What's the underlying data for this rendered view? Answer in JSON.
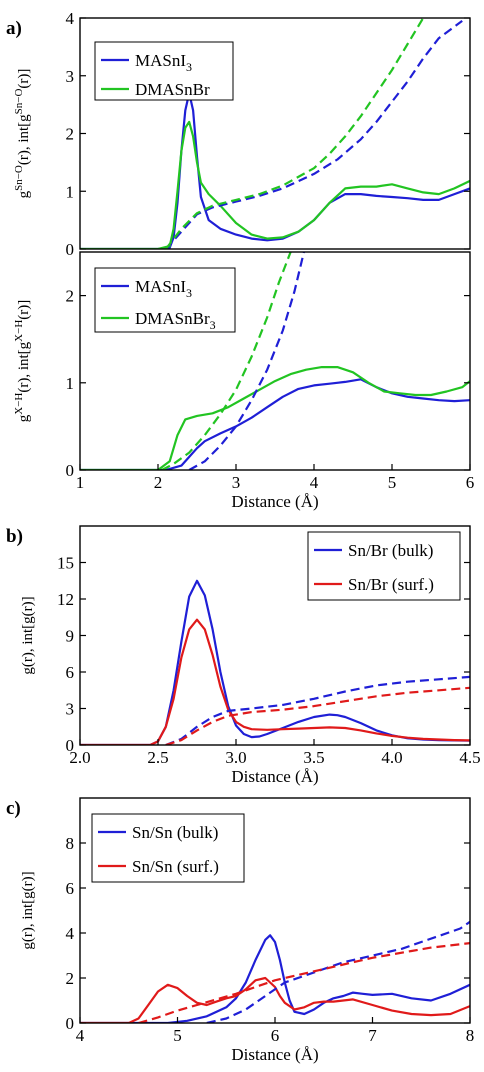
{
  "chart_data": [
    {
      "panel_label": "a)",
      "type": "line",
      "ylabel_main": "g",
      "ylabel_sup": "Sn−O",
      "ylabel_mid": "(r), int[g",
      "ylabel_sup2": "Sn−O",
      "ylabel_end": "(r)]",
      "xlim": [
        1,
        6
      ],
      "ylim": [
        0,
        4
      ],
      "yticks": [
        "0",
        "1",
        "2",
        "3",
        "4"
      ],
      "legend": [
        {
          "label": "MASnI",
          "sub": "3",
          "color": "#1f1fd6"
        },
        {
          "label": "DMASnBr",
          "sub": "",
          "color": "#22c422"
        }
      ],
      "series": [
        {
          "color": "#1f1fd6",
          "dash": false,
          "x": [
            1,
            2,
            2.15,
            2.2,
            2.25,
            2.3,
            2.35,
            2.4,
            2.45,
            2.5,
            2.55,
            2.65,
            2.8,
            3,
            3.2,
            3.4,
            3.6,
            3.8,
            4,
            4.2,
            4.4,
            4.6,
            4.8,
            5,
            5.2,
            5.4,
            5.6,
            5.8,
            6
          ],
          "y": [
            0,
            0,
            0.02,
            0.2,
            0.8,
            1.7,
            2.4,
            2.7,
            2.4,
            1.6,
            0.9,
            0.5,
            0.35,
            0.25,
            0.18,
            0.15,
            0.18,
            0.3,
            0.5,
            0.8,
            0.95,
            0.95,
            0.92,
            0.9,
            0.88,
            0.85,
            0.85,
            0.95,
            1.05
          ]
        },
        {
          "color": "#22c422",
          "dash": false,
          "x": [
            1,
            2,
            2.15,
            2.2,
            2.25,
            2.3,
            2.35,
            2.4,
            2.45,
            2.5,
            2.55,
            2.65,
            2.8,
            3,
            3.2,
            3.4,
            3.6,
            3.8,
            4,
            4.2,
            4.4,
            4.6,
            4.8,
            5,
            5.2,
            5.4,
            5.6,
            5.8,
            6
          ],
          "y": [
            0,
            0,
            0.05,
            0.35,
            1.0,
            1.7,
            2.1,
            2.2,
            1.95,
            1.5,
            1.15,
            0.95,
            0.75,
            0.45,
            0.25,
            0.18,
            0.2,
            0.3,
            0.5,
            0.8,
            1.05,
            1.08,
            1.08,
            1.12,
            1.05,
            0.98,
            0.95,
            1.05,
            1.18
          ]
        },
        {
          "color": "#1f1fd6",
          "dash": true,
          "x": [
            2.1,
            2.3,
            2.5,
            2.7,
            3,
            3.3,
            3.6,
            4,
            4.3,
            4.6,
            4.8,
            5,
            5.2,
            5.4,
            5.6,
            5.9
          ],
          "y": [
            0,
            0.3,
            0.6,
            0.72,
            0.82,
            0.92,
            1.05,
            1.3,
            1.55,
            1.9,
            2.2,
            2.55,
            2.9,
            3.3,
            3.65,
            3.95
          ]
        },
        {
          "color": "#22c422",
          "dash": true,
          "x": [
            2.1,
            2.3,
            2.5,
            2.7,
            3,
            3.3,
            3.6,
            4,
            4.2,
            4.4,
            4.6,
            4.8,
            5,
            5.2,
            5.4,
            5.6,
            5.8
          ],
          "y": [
            0,
            0.35,
            0.62,
            0.75,
            0.85,
            0.95,
            1.1,
            1.4,
            1.65,
            1.95,
            2.3,
            2.7,
            3.1,
            3.55,
            4.0,
            4.4,
            4.8
          ]
        }
      ]
    },
    {
      "panel_label": "",
      "type": "line",
      "ylabel_main": "g",
      "ylabel_sup": "X−H",
      "ylabel_mid": "(r), int[g",
      "ylabel_sup2": "X−H",
      "ylabel_end": "(r)]",
      "xlabel": "Distance (Å)",
      "xlim": [
        1,
        6
      ],
      "ylim": [
        0,
        2.5
      ],
      "xticks": [
        "1",
        "2",
        "3",
        "4",
        "5",
        "6"
      ],
      "yticks": [
        "0",
        "1",
        "2"
      ],
      "legend": [
        {
          "label": "MASnI",
          "sub": "3",
          "color": "#1f1fd6"
        },
        {
          "label": "DMASnBr",
          "sub": "3",
          "color": "#22c422"
        }
      ],
      "series": [
        {
          "color": "#1f1fd6",
          "dash": false,
          "x": [
            1,
            2.1,
            2.3,
            2.4,
            2.5,
            2.6,
            2.8,
            3,
            3.2,
            3.4,
            3.6,
            3.8,
            4,
            4.2,
            4.4,
            4.6,
            4.8,
            5,
            5.2,
            5.4,
            5.6,
            5.8,
            6
          ],
          "y": [
            0,
            0,
            0.05,
            0.15,
            0.25,
            0.33,
            0.42,
            0.5,
            0.6,
            0.72,
            0.84,
            0.93,
            0.97,
            0.99,
            1.01,
            1.04,
            0.95,
            0.88,
            0.84,
            0.82,
            0.8,
            0.79,
            0.8
          ]
        },
        {
          "color": "#22c422",
          "dash": false,
          "x": [
            1,
            2.0,
            2.15,
            2.25,
            2.35,
            2.5,
            2.7,
            2.9,
            3.1,
            3.3,
            3.5,
            3.7,
            3.9,
            4.1,
            4.3,
            4.5,
            4.7,
            4.9,
            5.1,
            5.3,
            5.5,
            5.7,
            5.9,
            6
          ],
          "y": [
            0,
            0,
            0.1,
            0.4,
            0.58,
            0.62,
            0.65,
            0.72,
            0.82,
            0.92,
            1.02,
            1.1,
            1.15,
            1.18,
            1.18,
            1.12,
            1.0,
            0.9,
            0.88,
            0.86,
            0.86,
            0.9,
            0.95,
            1.02
          ]
        },
        {
          "color": "#1f1fd6",
          "dash": true,
          "x": [
            2.4,
            2.6,
            2.8,
            3.0,
            3.2,
            3.4,
            3.6,
            3.75,
            3.87
          ],
          "y": [
            0,
            0.1,
            0.28,
            0.5,
            0.8,
            1.15,
            1.6,
            2.05,
            2.5
          ]
        },
        {
          "color": "#22c422",
          "dash": true,
          "x": [
            2.05,
            2.2,
            2.4,
            2.6,
            2.8,
            3.0,
            3.2,
            3.4,
            3.55,
            3.7
          ],
          "y": [
            0,
            0.07,
            0.2,
            0.4,
            0.64,
            0.92,
            1.3,
            1.75,
            2.15,
            2.5
          ]
        }
      ]
    },
    {
      "panel_label": "b)",
      "type": "line",
      "ylabel_main": "g(r), int[g(r)]",
      "xlabel": "Distance (Å)",
      "xlim": [
        2.0,
        4.5
      ],
      "ylim": [
        0,
        18
      ],
      "xticks": [
        "2.0",
        "2.5",
        "3.0",
        "3.5",
        "4.0",
        "4.5"
      ],
      "yticks": [
        "0",
        "3",
        "6",
        "9",
        "12",
        "15"
      ],
      "legend": [
        {
          "label": "Sn/Br (bulk)",
          "sub": "",
          "color": "#1f1fd6"
        },
        {
          "label": "Sn/Br (surf.)",
          "sub": "",
          "color": "#e01a1a"
        }
      ],
      "series": [
        {
          "color": "#1f1fd6",
          "dash": false,
          "x": [
            2.0,
            2.45,
            2.5,
            2.55,
            2.6,
            2.65,
            2.7,
            2.75,
            2.8,
            2.85,
            2.9,
            2.95,
            3.0,
            3.05,
            3.1,
            3.15,
            3.2,
            3.3,
            3.4,
            3.5,
            3.6,
            3.65,
            3.7,
            3.8,
            3.9,
            4.0,
            4.1,
            4.2,
            4.3,
            4.4,
            4.5
          ],
          "y": [
            0,
            0,
            0.3,
            1.5,
            4.5,
            8.5,
            12.2,
            13.5,
            12.3,
            9.5,
            6.0,
            3.2,
            1.6,
            0.9,
            0.65,
            0.7,
            0.9,
            1.4,
            1.9,
            2.3,
            2.5,
            2.45,
            2.3,
            1.8,
            1.2,
            0.8,
            0.55,
            0.45,
            0.4,
            0.38,
            0.35
          ]
        },
        {
          "color": "#e01a1a",
          "dash": false,
          "x": [
            2.0,
            2.45,
            2.5,
            2.55,
            2.6,
            2.65,
            2.7,
            2.75,
            2.8,
            2.85,
            2.9,
            2.95,
            3.0,
            3.05,
            3.1,
            3.2,
            3.3,
            3.4,
            3.5,
            3.6,
            3.7,
            3.8,
            3.9,
            4.0,
            4.1,
            4.2,
            4.3,
            4.4,
            4.5
          ],
          "y": [
            0,
            0,
            0.3,
            1.5,
            3.8,
            7.2,
            9.5,
            10.3,
            9.5,
            7.4,
            4.8,
            2.9,
            1.9,
            1.5,
            1.3,
            1.25,
            1.3,
            1.35,
            1.4,
            1.45,
            1.4,
            1.2,
            0.95,
            0.75,
            0.6,
            0.5,
            0.45,
            0.4,
            0.38
          ]
        },
        {
          "color": "#1f1fd6",
          "dash": true,
          "x": [
            2.55,
            2.65,
            2.75,
            2.85,
            2.95,
            3.1,
            3.3,
            3.5,
            3.7,
            3.9,
            4.1,
            4.3,
            4.5
          ],
          "y": [
            0,
            0.5,
            1.5,
            2.3,
            2.8,
            3.0,
            3.3,
            3.8,
            4.4,
            4.9,
            5.2,
            5.4,
            5.6
          ]
        },
        {
          "color": "#e01a1a",
          "dash": true,
          "x": [
            2.55,
            2.65,
            2.75,
            2.85,
            2.95,
            3.1,
            3.3,
            3.5,
            3.7,
            3.9,
            4.1,
            4.3,
            4.5
          ],
          "y": [
            0,
            0.4,
            1.2,
            1.9,
            2.4,
            2.7,
            2.9,
            3.2,
            3.6,
            4.0,
            4.3,
            4.5,
            4.7
          ]
        }
      ]
    },
    {
      "panel_label": "c)",
      "type": "line",
      "ylabel_main": "g(r), int[g(r)]",
      "xlabel": "Distance (Å)",
      "xlim": [
        4,
        8
      ],
      "ylim": [
        0,
        10
      ],
      "xticks": [
        "4",
        "5",
        "6",
        "7",
        "8"
      ],
      "yticks": [
        "0",
        "2",
        "4",
        "6",
        "8"
      ],
      "legend": [
        {
          "label": "Sn/Sn (bulk)",
          "sub": "",
          "color": "#1f1fd6"
        },
        {
          "label": "Sn/Sn (surf.)",
          "sub": "",
          "color": "#e01a1a"
        }
      ],
      "series": [
        {
          "color": "#1f1fd6",
          "dash": false,
          "x": [
            4,
            4.9,
            5.1,
            5.3,
            5.5,
            5.6,
            5.7,
            5.8,
            5.9,
            5.95,
            6.0,
            6.05,
            6.1,
            6.15,
            6.2,
            6.3,
            6.4,
            6.5,
            6.6,
            6.7,
            6.8,
            6.9,
            7.0,
            7.2,
            7.4,
            7.6,
            7.8,
            8
          ],
          "y": [
            0,
            0,
            0.1,
            0.3,
            0.7,
            1.1,
            1.8,
            2.8,
            3.7,
            3.9,
            3.6,
            2.8,
            1.8,
            1.0,
            0.5,
            0.4,
            0.6,
            0.9,
            1.1,
            1.2,
            1.35,
            1.3,
            1.25,
            1.3,
            1.1,
            1.0,
            1.3,
            1.7
          ]
        },
        {
          "color": "#e01a1a",
          "dash": false,
          "x": [
            4,
            4.5,
            4.6,
            4.7,
            4.8,
            4.9,
            5.0,
            5.1,
            5.2,
            5.3,
            5.4,
            5.5,
            5.6,
            5.7,
            5.8,
            5.9,
            6.0,
            6.05,
            6.1,
            6.2,
            6.3,
            6.4,
            6.5,
            6.6,
            6.8,
            7.0,
            7.2,
            7.4,
            7.6,
            7.8,
            8
          ],
          "y": [
            0,
            0,
            0.2,
            0.8,
            1.4,
            1.7,
            1.55,
            1.2,
            0.9,
            0.8,
            0.95,
            1.1,
            1.2,
            1.5,
            1.9,
            2.0,
            1.6,
            1.2,
            0.9,
            0.6,
            0.7,
            0.9,
            0.95,
            0.95,
            1.05,
            0.8,
            0.55,
            0.4,
            0.35,
            0.4,
            0.75
          ]
        },
        {
          "color": "#1f1fd6",
          "dash": true,
          "x": [
            5.3,
            5.5,
            5.7,
            5.9,
            6.1,
            6.3,
            6.5,
            6.7,
            6.9,
            7.1,
            7.3,
            7.5,
            7.7,
            7.9,
            8
          ],
          "y": [
            0,
            0.2,
            0.6,
            1.2,
            1.8,
            2.1,
            2.4,
            2.7,
            2.9,
            3.1,
            3.3,
            3.6,
            3.9,
            4.2,
            4.5
          ]
        },
        {
          "color": "#e01a1a",
          "dash": true,
          "x": [
            4.6,
            4.8,
            5.0,
            5.2,
            5.4,
            5.6,
            5.8,
            6.0,
            6.2,
            6.4,
            6.6,
            6.8,
            7.0,
            7.2,
            7.4,
            7.6,
            7.8,
            8
          ],
          "y": [
            0,
            0.25,
            0.55,
            0.8,
            1.05,
            1.3,
            1.6,
            1.9,
            2.1,
            2.3,
            2.5,
            2.7,
            2.9,
            3.05,
            3.2,
            3.35,
            3.45,
            3.55
          ]
        }
      ]
    }
  ]
}
